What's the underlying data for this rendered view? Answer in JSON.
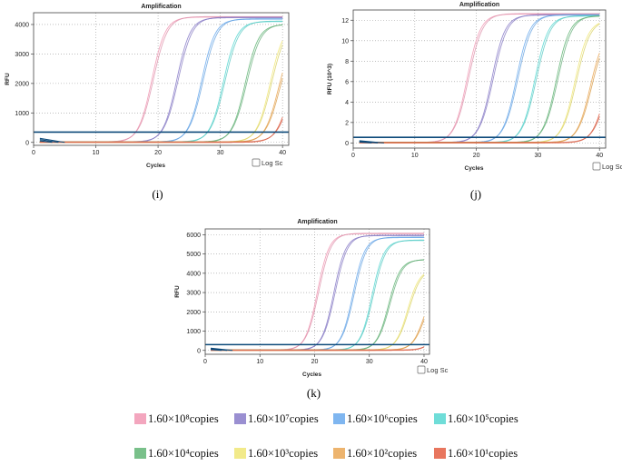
{
  "chart_data": [
    {
      "type": "line",
      "panel_label": "(i)",
      "title": "Amplification",
      "xlabel": "Cycles",
      "ylabel": "RFU",
      "xlim": [
        0,
        41
      ],
      "ylim": [
        -100,
        4400
      ],
      "xticks": [
        0,
        10,
        20,
        30,
        40
      ],
      "yticks": [
        0,
        1000,
        2000,
        3000,
        4000
      ],
      "grid": true,
      "threshold": 350,
      "log_scale_label": "Log Sc",
      "series": [
        {
          "name": "1.60×10⁸copies",
          "midpoint": 19.0,
          "plateau": 4250
        },
        {
          "name": "1.60×10⁷copies",
          "midpoint": 23.0,
          "plateau": 4230
        },
        {
          "name": "1.60×10⁶copies",
          "midpoint": 27.0,
          "plateau": 4180
        },
        {
          "name": "1.60×10⁵copies",
          "midpoint": 30.5,
          "plateau": 4100
        },
        {
          "name": "1.60×10⁴copies",
          "midpoint": 34.0,
          "plateau": 4000
        },
        {
          "name": "1.60×10³copies",
          "midpoint": 38.0,
          "plateau": 4000
        },
        {
          "name": "1.60×10²copies",
          "midpoint": 39.3,
          "plateau": 3600
        },
        {
          "name": "1.60×10¹copies",
          "midpoint": 41.0,
          "plateau": 3000
        }
      ]
    },
    {
      "type": "line",
      "panel_label": "(j)",
      "title": "Amplification",
      "xlabel": "Cycles",
      "ylabel": "RFU (10^3)",
      "xlim": [
        0,
        41
      ],
      "ylim": [
        -0.5,
        13
      ],
      "xticks": [
        0,
        10,
        20,
        30,
        40
      ],
      "yticks": [
        0,
        2,
        4,
        6,
        8,
        10,
        12
      ],
      "grid": true,
      "threshold": 0.55,
      "log_scale_label": "Log Sc",
      "series": [
        {
          "name": "1.60×10⁸copies",
          "midpoint": 18.5,
          "plateau": 12.6
        },
        {
          "name": "1.60×10⁷copies",
          "midpoint": 22.5,
          "plateau": 12.5
        },
        {
          "name": "1.60×10⁶copies",
          "midpoint": 26.5,
          "plateau": 12.5
        },
        {
          "name": "1.60×10⁵copies",
          "midpoint": 29.5,
          "plateau": 12.4
        },
        {
          "name": "1.60×10⁴copies",
          "midpoint": 33.0,
          "plateau": 12.4
        },
        {
          "name": "1.60×10³copies",
          "midpoint": 36.0,
          "plateau": 12.0
        },
        {
          "name": "1.60×10²copies",
          "midpoint": 38.5,
          "plateau": 11.0
        },
        {
          "name": "1.60×10¹copies",
          "midpoint": 41.0,
          "plateau": 10.0
        }
      ]
    },
    {
      "type": "line",
      "panel_label": "(k)",
      "title": "Amplification",
      "xlabel": "Cycles",
      "ylabel": "RFU",
      "xlim": [
        0,
        41
      ],
      "ylim": [
        -200,
        6300
      ],
      "xticks": [
        0,
        10,
        20,
        30,
        40
      ],
      "yticks": [
        0,
        1000,
        2000,
        3000,
        4000,
        5000,
        6000
      ],
      "grid": true,
      "threshold": 300,
      "log_scale_label": "Log Sc",
      "series": [
        {
          "name": "1.60×10⁸copies",
          "midpoint": 20.5,
          "plateau": 6050
        },
        {
          "name": "1.60×10⁷copies",
          "midpoint": 23.5,
          "plateau": 5950
        },
        {
          "name": "1.60×10⁶copies",
          "midpoint": 27.0,
          "plateau": 5850
        },
        {
          "name": "1.60×10⁵copies",
          "midpoint": 30.5,
          "plateau": 5700
        },
        {
          "name": "1.60×10⁴copies",
          "midpoint": 33.5,
          "plateau": 4700
        },
        {
          "name": "1.60×10³copies",
          "midpoint": 37.0,
          "plateau": 4200
        },
        {
          "name": "1.60×10²copies",
          "midpoint": 40.0,
          "plateau": 3500
        },
        {
          "name": "1.60×10¹copies",
          "midpoint": 43.0,
          "plateau": 3000
        }
      ]
    }
  ],
  "legend": [
    {
      "label": "1.60×10⁸copies",
      "color": "#F3A6BE"
    },
    {
      "label": "1.60×10⁷copies",
      "color": "#9A8FD1"
    },
    {
      "label": "1.60×10⁶copies",
      "color": "#7FB6F0"
    },
    {
      "label": "1.60×10⁵copies",
      "color": "#6FDDD8"
    },
    {
      "label": "1.60×10⁴copies",
      "color": "#79C08A"
    },
    {
      "label": "1.60×10³copies",
      "color": "#F2EA8A"
    },
    {
      "label": "1.60×10²copies",
      "color": "#EDB46E"
    },
    {
      "label": "1.60×10¹copies",
      "color": "#E8765E"
    }
  ],
  "colors": {
    "threshold": "#0D4A7A",
    "axis": "#444444",
    "grid": "#999999"
  }
}
